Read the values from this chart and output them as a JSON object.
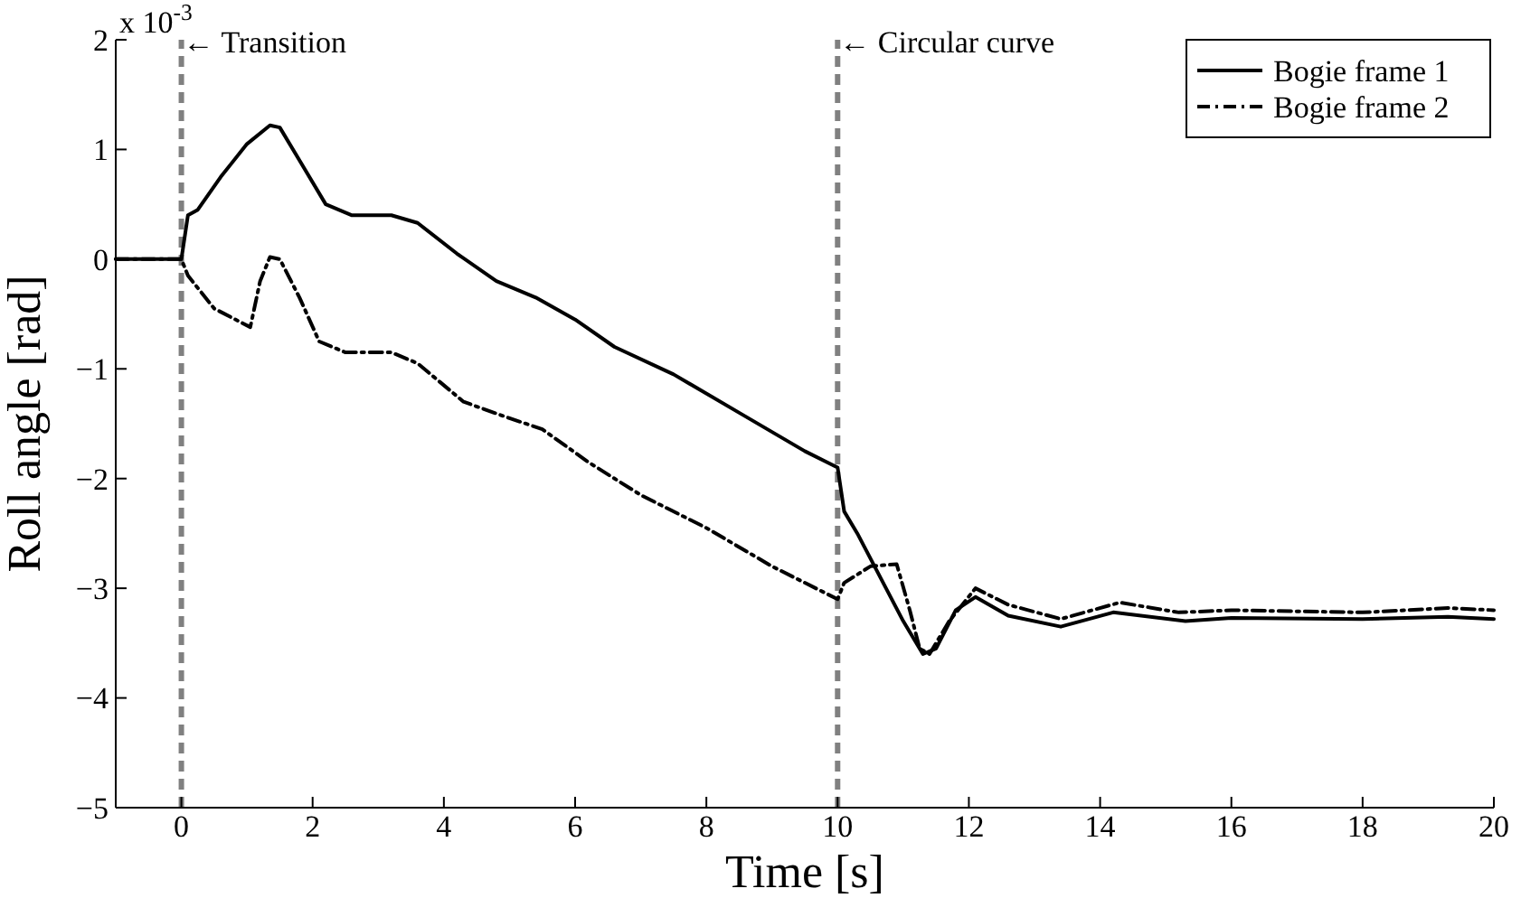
{
  "chart_data": {
    "type": "line",
    "xlabel": "Time [s]",
    "ylabel": "Roll angle [rad]",
    "annotations": [
      "x 10$^{-3}$"
    ],
    "xlim": [
      -1,
      20
    ],
    "xticks": [
      0,
      2,
      4,
      6,
      8,
      10,
      12,
      14,
      16,
      18,
      20
    ],
    "ylim": [
      -5,
      2
    ],
    "yticks": [
      -5,
      -4,
      -3,
      -2,
      -1,
      0,
      1,
      2
    ],
    "grid": false,
    "legend": "top right",
    "ref_lines": [
      {
        "axis": "x",
        "value": 0,
        "label": "← Transition",
        "color": "#808080",
        "line_style": "dashed"
      },
      {
        "axis": "x",
        "value": 10,
        "label": "← Circular curve",
        "color": "#808080",
        "line_style": "dashed"
      }
    ],
    "series": [
      {
        "name": "Bogie frame 1",
        "color": "#000000",
        "line_style": "solid",
        "x": [
          -1,
          -0.1,
          0,
          0.1,
          0.25,
          0.6,
          1.0,
          1.35,
          1.5,
          1.8,
          2.2,
          2.6,
          3.2,
          3.6,
          4.2,
          4.8,
          5.4,
          6,
          6.6,
          7.5,
          8.5,
          9.5,
          10,
          10.1,
          10.3,
          11.0,
          11.3,
          11.5,
          11.8,
          12.1,
          12.6,
          13.4,
          14.2,
          15.3,
          16,
          18,
          19.3,
          20
        ],
        "values": [
          0,
          0,
          0,
          0.4,
          0.45,
          0.75,
          1.05,
          1.22,
          1.2,
          0.9,
          0.5,
          0.4,
          0.4,
          0.33,
          0.05,
          -0.2,
          -0.35,
          -0.55,
          -0.8,
          -1.05,
          -1.4,
          -1.75,
          -1.9,
          -2.3,
          -2.5,
          -3.3,
          -3.6,
          -3.55,
          -3.2,
          -3.08,
          -3.25,
          -3.35,
          -3.22,
          -3.3,
          -3.27,
          -3.28,
          -3.26,
          -3.28
        ]
      },
      {
        "name": "Bogie frame 2",
        "color": "#000000",
        "line_style": "dashdot",
        "x": [
          -1,
          0,
          0.1,
          0.5,
          1.05,
          1.2,
          1.35,
          1.5,
          1.8,
          2.1,
          2.5,
          3.2,
          3.6,
          4.3,
          5,
          5.5,
          6.2,
          7,
          8,
          9,
          10,
          10.1,
          10.5,
          10.9,
          11.1,
          11.25,
          11.4,
          11.7,
          12.1,
          12.6,
          13.4,
          14.3,
          15.2,
          16,
          18,
          19.3,
          20
        ],
        "values": [
          0,
          0,
          -0.15,
          -0.45,
          -0.62,
          -0.2,
          0.02,
          0,
          -0.35,
          -0.75,
          -0.85,
          -0.85,
          -0.95,
          -1.3,
          -1.45,
          -1.55,
          -1.85,
          -2.15,
          -2.45,
          -2.8,
          -3.1,
          -2.95,
          -2.8,
          -2.78,
          -3.2,
          -3.55,
          -3.6,
          -3.3,
          -3.0,
          -3.15,
          -3.28,
          -3.13,
          -3.22,
          -3.2,
          -3.22,
          -3.18,
          -3.2
        ]
      }
    ]
  }
}
